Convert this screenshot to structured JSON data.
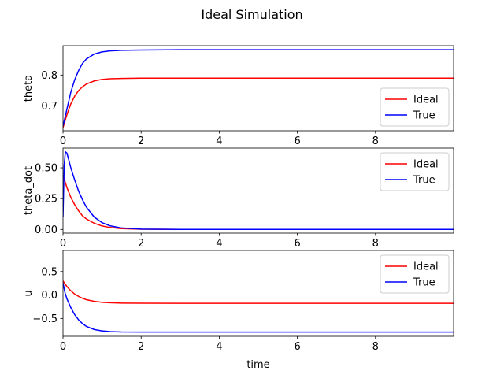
{
  "figure": {
    "title": "Ideal Simulation"
  },
  "chart_data": [
    {
      "type": "line",
      "ylabel": "theta",
      "xlabel": "",
      "xlim": [
        0,
        10
      ],
      "ylim": [
        0.62,
        0.895
      ],
      "xticks": [
        0,
        2,
        4,
        6,
        8
      ],
      "yticks": [
        0.7,
        0.8
      ],
      "legend": "lower-right",
      "grid": false,
      "series": [
        {
          "name": "Ideal",
          "color": "#ff0000",
          "x": [
            0,
            0.1,
            0.2,
            0.3,
            0.4,
            0.5,
            0.6,
            0.8,
            1.0,
            1.2,
            1.5,
            2,
            3,
            5,
            10
          ],
          "y": [
            0.63,
            0.672,
            0.707,
            0.732,
            0.75,
            0.762,
            0.771,
            0.781,
            0.786,
            0.788,
            0.789,
            0.79,
            0.79,
            0.79,
            0.79
          ]
        },
        {
          "name": "True",
          "color": "#0000ff",
          "x": [
            0,
            0.1,
            0.2,
            0.3,
            0.4,
            0.5,
            0.6,
            0.8,
            1.0,
            1.2,
            1.5,
            2,
            3,
            5,
            10
          ],
          "y": [
            0.635,
            0.69,
            0.745,
            0.785,
            0.815,
            0.838,
            0.852,
            0.868,
            0.875,
            0.878,
            0.88,
            0.881,
            0.882,
            0.882,
            0.882
          ]
        }
      ]
    },
    {
      "type": "line",
      "ylabel": "theta_dot",
      "xlabel": "",
      "xlim": [
        0,
        10
      ],
      "ylim": [
        -0.03,
        0.66
      ],
      "xticks": [
        0,
        2,
        4,
        6,
        8
      ],
      "yticks": [
        0.0,
        0.25,
        0.5
      ],
      "ytick_labels": [
        "0.00",
        "0.25",
        "0.50"
      ],
      "legend": "top-right",
      "grid": false,
      "series": [
        {
          "name": "Ideal",
          "color": "#ff0000",
          "x": [
            0,
            0.1,
            0.2,
            0.3,
            0.4,
            0.5,
            0.6,
            0.8,
            1.0,
            1.2,
            1.5,
            2,
            3,
            10
          ],
          "y": [
            0.44,
            0.34,
            0.26,
            0.2,
            0.15,
            0.11,
            0.085,
            0.05,
            0.028,
            0.016,
            0.007,
            0.002,
            0.0,
            0.0
          ]
        },
        {
          "name": "True",
          "color": "#0000ff",
          "x": [
            0,
            0.03,
            0.06,
            0.1,
            0.15,
            0.2,
            0.3,
            0.4,
            0.5,
            0.6,
            0.8,
            1.0,
            1.2,
            1.5,
            2,
            3,
            10
          ],
          "y": [
            0.1,
            0.52,
            0.63,
            0.62,
            0.56,
            0.5,
            0.4,
            0.31,
            0.24,
            0.18,
            0.1,
            0.055,
            0.03,
            0.012,
            0.003,
            0.0,
            0.0
          ]
        }
      ]
    },
    {
      "type": "line",
      "ylabel": "u",
      "xlabel": "time",
      "xlim": [
        0,
        10
      ],
      "ylim": [
        -0.88,
        0.95
      ],
      "xticks": [
        0,
        2,
        4,
        6,
        8
      ],
      "yticks": [
        -0.5,
        0.0,
        0.5
      ],
      "ytick_labels": [
        "−0.5",
        "0.0",
        "0.5"
      ],
      "legend": "top-right",
      "grid": false,
      "series": [
        {
          "name": "Ideal",
          "color": "#ff0000",
          "x": [
            0,
            0.1,
            0.2,
            0.3,
            0.4,
            0.5,
            0.6,
            0.8,
            1.0,
            1.2,
            1.5,
            2,
            3,
            5,
            10
          ],
          "y": [
            0.3,
            0.18,
            0.09,
            0.02,
            -0.03,
            -0.07,
            -0.1,
            -0.135,
            -0.155,
            -0.165,
            -0.172,
            -0.175,
            -0.176,
            -0.176,
            -0.176
          ]
        },
        {
          "name": "True",
          "color": "#0000ff",
          "x": [
            0,
            0.05,
            0.1,
            0.2,
            0.3,
            0.4,
            0.5,
            0.6,
            0.8,
            1.0,
            1.2,
            1.5,
            2,
            3,
            5,
            10
          ],
          "y": [
            0.26,
            0.05,
            -0.08,
            -0.27,
            -0.42,
            -0.53,
            -0.61,
            -0.67,
            -0.735,
            -0.765,
            -0.78,
            -0.788,
            -0.79,
            -0.79,
            -0.79,
            -0.79
          ]
        }
      ]
    }
  ]
}
